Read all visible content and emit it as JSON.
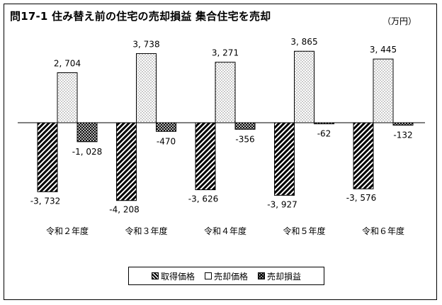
{
  "header": {
    "title": "問17-1 住み替え前の住宅の売却損益 集合住宅を売却",
    "unit": "（万円）"
  },
  "legend": {
    "items": [
      {
        "label": "取得価格",
        "icon": "diagonal-hatch-swatch"
      },
      {
        "label": "売却価格",
        "icon": "dotted-swatch"
      },
      {
        "label": "売却損益",
        "icon": "crosshatch-swatch"
      }
    ]
  },
  "chart_data": {
    "type": "bar",
    "categories": [
      "令和２年度",
      "令和３年度",
      "令和４年度",
      "令和５年度",
      "令和６年度"
    ],
    "series": [
      {
        "name": "取得価格",
        "values": [
          -3732,
          -4208,
          -3626,
          -3927,
          -3576
        ],
        "labels": [
          "-3, 732",
          "-4, 208",
          "-3, 626",
          "-3, 927",
          "-3, 576"
        ]
      },
      {
        "name": "売却価格",
        "values": [
          2704,
          3738,
          3271,
          3865,
          3445
        ],
        "labels": [
          "2, 704",
          "3, 738",
          "3, 271",
          "3, 865",
          "3, 445"
        ]
      },
      {
        "name": "売却損益",
        "values": [
          -1028,
          -470,
          -356,
          -62,
          -132
        ],
        "labels": [
          "-1, 028",
          "-470",
          "-356",
          "-62",
          "-132"
        ]
      }
    ],
    "ylim": [
      -4500,
      4000
    ],
    "grid": false,
    "legend_position": "bottom"
  }
}
